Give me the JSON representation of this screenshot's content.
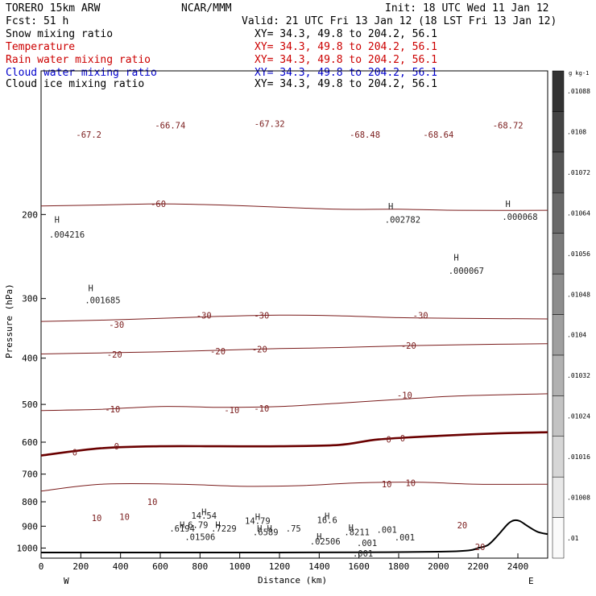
{
  "header": {
    "model": "TORERO   15km ARW",
    "center": "NCAR/MMM",
    "init": "Init: 18 UTC Wed 11 Jan 12",
    "fcst": "Fcst:    51 h",
    "valid": "Valid: 21 UTC Fri 13 Jan 12 (18 LST Fri 13 Jan 12)"
  },
  "fields": [
    {
      "name": "Snow mixing ratio",
      "xy": "XY=  34.3, 49.8 to 204.2, 56.1",
      "color": "#000000"
    },
    {
      "name": "Temperature",
      "xy": "XY=  34.3, 49.8 to 204.2, 56.1",
      "color": "#cc0000"
    },
    {
      "name": "Rain water mixing ratio",
      "xy": "XY=  34.3, 49.8 to 204.2, 56.1",
      "color": "#cc0000"
    },
    {
      "name": "Cloud water mixing ratio",
      "xy": "XY=  34.3, 49.8 to 204.2, 56.1",
      "color": "#0000cc"
    },
    {
      "name": "Cloud ice mixing ratio",
      "xy": "XY=  34.3, 49.8 to 204.2, 56.1",
      "color": "#000000"
    }
  ],
  "colors": {
    "temperature": "#7a1c1c",
    "freezing": "#6a0000",
    "cloud_water": "#1a1ad0",
    "rain": "#dd2222",
    "ice": "#000000",
    "terrain": "#000000"
  },
  "chart_data": {
    "type": "line",
    "xlabel": "Distance (km)",
    "ylabel": "Pressure (hPa)",
    "xlim": [
      0,
      2550
    ],
    "ylim": [
      1050,
      100
    ],
    "y_scale": "log",
    "x_ticks": [
      "0",
      "200",
      "400",
      "600",
      "800",
      "1000",
      "1200",
      "1400",
      "1600",
      "1800",
      "2000",
      "2200",
      "2400"
    ],
    "y_ticks": [
      "200",
      "300",
      "400",
      "500",
      "600",
      "700",
      "800",
      "900",
      "1000"
    ],
    "endpoint_labels": {
      "left": "W",
      "right": "E"
    },
    "temperature_isotherms": [
      {
        "value": -60,
        "label": "-60",
        "x": [
          0,
          300,
          600,
          900,
          1200,
          1500,
          1800,
          2100,
          2550
        ],
        "p": [
          192,
          191,
          190,
          191,
          193,
          195,
          195,
          196,
          196
        ]
      },
      {
        "value": -30,
        "label": "-30",
        "x": [
          0,
          300,
          600,
          900,
          1200,
          1500,
          1800,
          2100,
          2550
        ],
        "p": [
          335,
          333,
          330,
          327,
          325,
          326,
          329,
          330,
          331
        ]
      },
      {
        "value": -20,
        "label": "-20",
        "x": [
          0,
          300,
          600,
          900,
          1200,
          1500,
          1800,
          2100,
          2550
        ],
        "p": [
          392,
          390,
          388,
          385,
          382,
          380,
          377,
          375,
          373
        ]
      },
      {
        "value": -10,
        "label": "-10",
        "x": [
          0,
          300,
          600,
          900,
          1200,
          1500,
          1800,
          2100,
          2550
        ],
        "p": [
          515,
          512,
          505,
          507,
          505,
          497,
          488,
          480,
          475
        ]
      },
      {
        "value": 0,
        "label": "0",
        "x": [
          0,
          300,
          600,
          900,
          1200,
          1500,
          1700,
          2000,
          2300,
          2550
        ],
        "p": [
          640,
          618,
          612,
          612,
          612,
          608,
          592,
          582,
          575,
          572
        ]
      },
      {
        "value": 10,
        "label": "10",
        "x": [
          0,
          300,
          700,
          1000,
          1300,
          1600,
          1900,
          2200,
          2550
        ],
        "p": [
          760,
          735,
          735,
          742,
          740,
          730,
          728,
          735,
          735
        ]
      }
    ],
    "temperature_labels": [
      {
        "text": "-67.2",
        "x": 240,
        "p": 136
      },
      {
        "text": "-66.74",
        "x": 650,
        "p": 130
      },
      {
        "text": "-67.32",
        "x": 1150,
        "p": 129
      },
      {
        "text": "-68.48",
        "x": 1630,
        "p": 136
      },
      {
        "text": "-68.64",
        "x": 2000,
        "p": 136
      },
      {
        "text": "-68.72",
        "x": 2350,
        "p": 130
      },
      {
        "text": "-60",
        "x": 590,
        "p": 190
      },
      {
        "text": "-30",
        "x": 380,
        "p": 340
      },
      {
        "text": "-30",
        "x": 820,
        "p": 325
      },
      {
        "text": "-30",
        "x": 1110,
        "p": 325
      },
      {
        "text": "-30",
        "x": 1910,
        "p": 325
      },
      {
        "text": "-20",
        "x": 370,
        "p": 393
      },
      {
        "text": "-20",
        "x": 890,
        "p": 387
      },
      {
        "text": "-20",
        "x": 1100,
        "p": 383
      },
      {
        "text": "-20",
        "x": 1850,
        "p": 376
      },
      {
        "text": "-10",
        "x": 360,
        "p": 512
      },
      {
        "text": "-10",
        "x": 960,
        "p": 514
      },
      {
        "text": "-10",
        "x": 1110,
        "p": 510
      },
      {
        "text": "-10",
        "x": 1830,
        "p": 478
      },
      {
        "text": "0",
        "x": 170,
        "p": 630
      },
      {
        "text": "0",
        "x": 380,
        "p": 612
      },
      {
        "text": "0",
        "x": 1750,
        "p": 592
      },
      {
        "text": "0",
        "x": 1820,
        "p": 588
      },
      {
        "text": "10",
        "x": 560,
        "p": 800
      },
      {
        "text": "10",
        "x": 280,
        "p": 865
      },
      {
        "text": "10",
        "x": 420,
        "p": 860
      },
      {
        "text": "10",
        "x": 1740,
        "p": 735
      },
      {
        "text": "10",
        "x": 1860,
        "p": 730
      },
      {
        "text": "20",
        "x": 2120,
        "p": 895
      },
      {
        "text": "20",
        "x": 2210,
        "p": 995
      }
    ],
    "maxima_labels": [
      {
        "text": "H",
        "x": 80,
        "p": 205
      },
      {
        "text": ".004216",
        "x": 130,
        "p": 220
      },
      {
        "text": "H",
        "x": 250,
        "p": 285
      },
      {
        "text": ".001685",
        "x": 310,
        "p": 302
      },
      {
        "text": "H",
        "x": 1760,
        "p": 192
      },
      {
        "text": ".002782",
        "x": 1820,
        "p": 205
      },
      {
        "text": "H",
        "x": 2350,
        "p": 190
      },
      {
        "text": ".000068",
        "x": 2410,
        "p": 202
      },
      {
        "text": "H",
        "x": 2090,
        "p": 246
      },
      {
        "text": ".000067",
        "x": 2140,
        "p": 262
      },
      {
        "text": "H",
        "x": 820,
        "p": 840
      },
      {
        "text": "14.54",
        "x": 820,
        "p": 855
      },
      {
        "text": "H",
        "x": 1090,
        "p": 860
      },
      {
        "text": "14.79",
        "x": 1090,
        "p": 876
      },
      {
        "text": "H",
        "x": 1440,
        "p": 857
      },
      {
        "text": "16.6",
        "x": 1440,
        "p": 873
      },
      {
        "text": "H",
        "x": 710,
        "p": 893
      },
      {
        "text": "6.79",
        "x": 790,
        "p": 893
      },
      {
        "text": ".6194",
        "x": 710,
        "p": 910
      },
      {
        "text": "H",
        "x": 890,
        "p": 893
      },
      {
        "text": ".7229",
        "x": 920,
        "p": 910
      },
      {
        "text": "H",
        "x": 1100,
        "p": 910
      },
      {
        "text": ".6589",
        "x": 1130,
        "p": 925
      },
      {
        "text": "H",
        "x": 1150,
        "p": 910
      },
      {
        "text": ".75",
        "x": 1270,
        "p": 910
      },
      {
        "text": "H",
        "x": 1560,
        "p": 905
      },
      {
        "text": ".8211",
        "x": 1590,
        "p": 925
      },
      {
        "text": ".001",
        "x": 1740,
        "p": 915
      },
      {
        "text": ".001",
        "x": 1830,
        "p": 950
      },
      {
        "text": ".01506",
        "x": 800,
        "p": 948
      },
      {
        "text": ".02506",
        "x": 1430,
        "p": 968
      },
      {
        "text": ".001",
        "x": 1640,
        "p": 975
      },
      {
        "text": ".001",
        "x": 1620,
        "p": 1025
      },
      {
        "text": "H",
        "x": 1400,
        "p": 945
      }
    ],
    "terrain": {
      "x": [
        0,
        400,
        800,
        1200,
        1600,
        2000,
        2150,
        2200,
        2250,
        2300,
        2350,
        2380,
        2410,
        2450,
        2500,
        2550
      ],
      "p": [
        1022,
        1022,
        1022,
        1022,
        1021,
        1018,
        1012,
        1000,
        985,
        940,
        890,
        875,
        878,
        900,
        925,
        935
      ]
    },
    "colorbar": {
      "unit": "g kg-1",
      "labels": [
        ".01",
        ".01008",
        ".01016",
        ".01024",
        ".01032",
        ".0104",
        ".01048",
        ".01056",
        ".01064",
        ".01072",
        ".0108",
        ".01088"
      ]
    }
  }
}
